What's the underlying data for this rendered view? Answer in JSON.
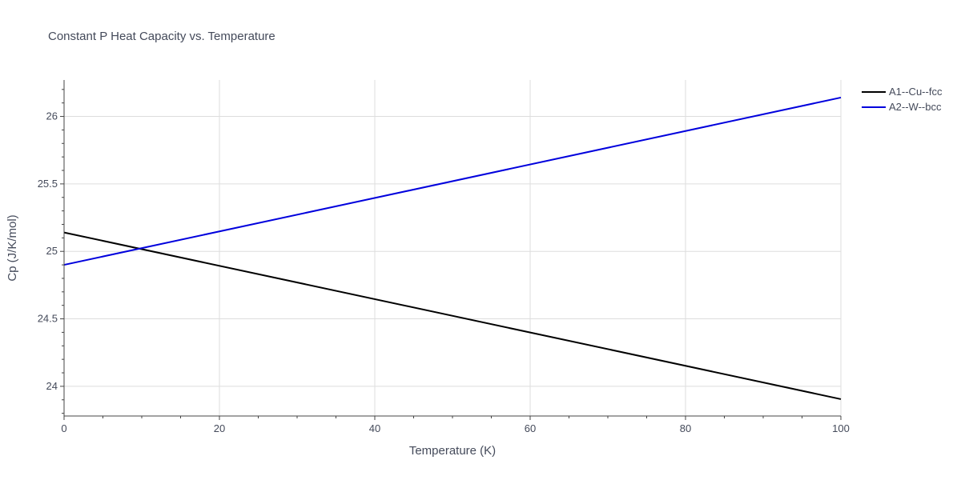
{
  "chart_data": {
    "type": "line",
    "title": "Constant P Heat Capacity vs. Temperature",
    "xlabel": "Temperature (K)",
    "ylabel": "Cp (J/K/mol)",
    "xlim": [
      0,
      100
    ],
    "ylim": [
      23.78,
      26.27
    ],
    "x_ticks": [
      0,
      20,
      40,
      60,
      80,
      100
    ],
    "x_tick_labels": [
      "0",
      "20",
      "40",
      "60",
      "80",
      "100"
    ],
    "y_ticks": [
      24,
      24.5,
      25,
      25.5,
      26
    ],
    "y_tick_labels": [
      "24",
      "24.5",
      "25",
      "25.5",
      "26"
    ],
    "grid": true,
    "legend_position": "top-right",
    "series": [
      {
        "name": "A1--Cu--fcc",
        "color": "#000000",
        "x": [
          0,
          100
        ],
        "y": [
          25.14,
          23.905
        ]
      },
      {
        "name": "A2--W--bcc",
        "color": "#0000dd",
        "x": [
          0,
          100
        ],
        "y": [
          24.9,
          26.14
        ]
      }
    ]
  }
}
